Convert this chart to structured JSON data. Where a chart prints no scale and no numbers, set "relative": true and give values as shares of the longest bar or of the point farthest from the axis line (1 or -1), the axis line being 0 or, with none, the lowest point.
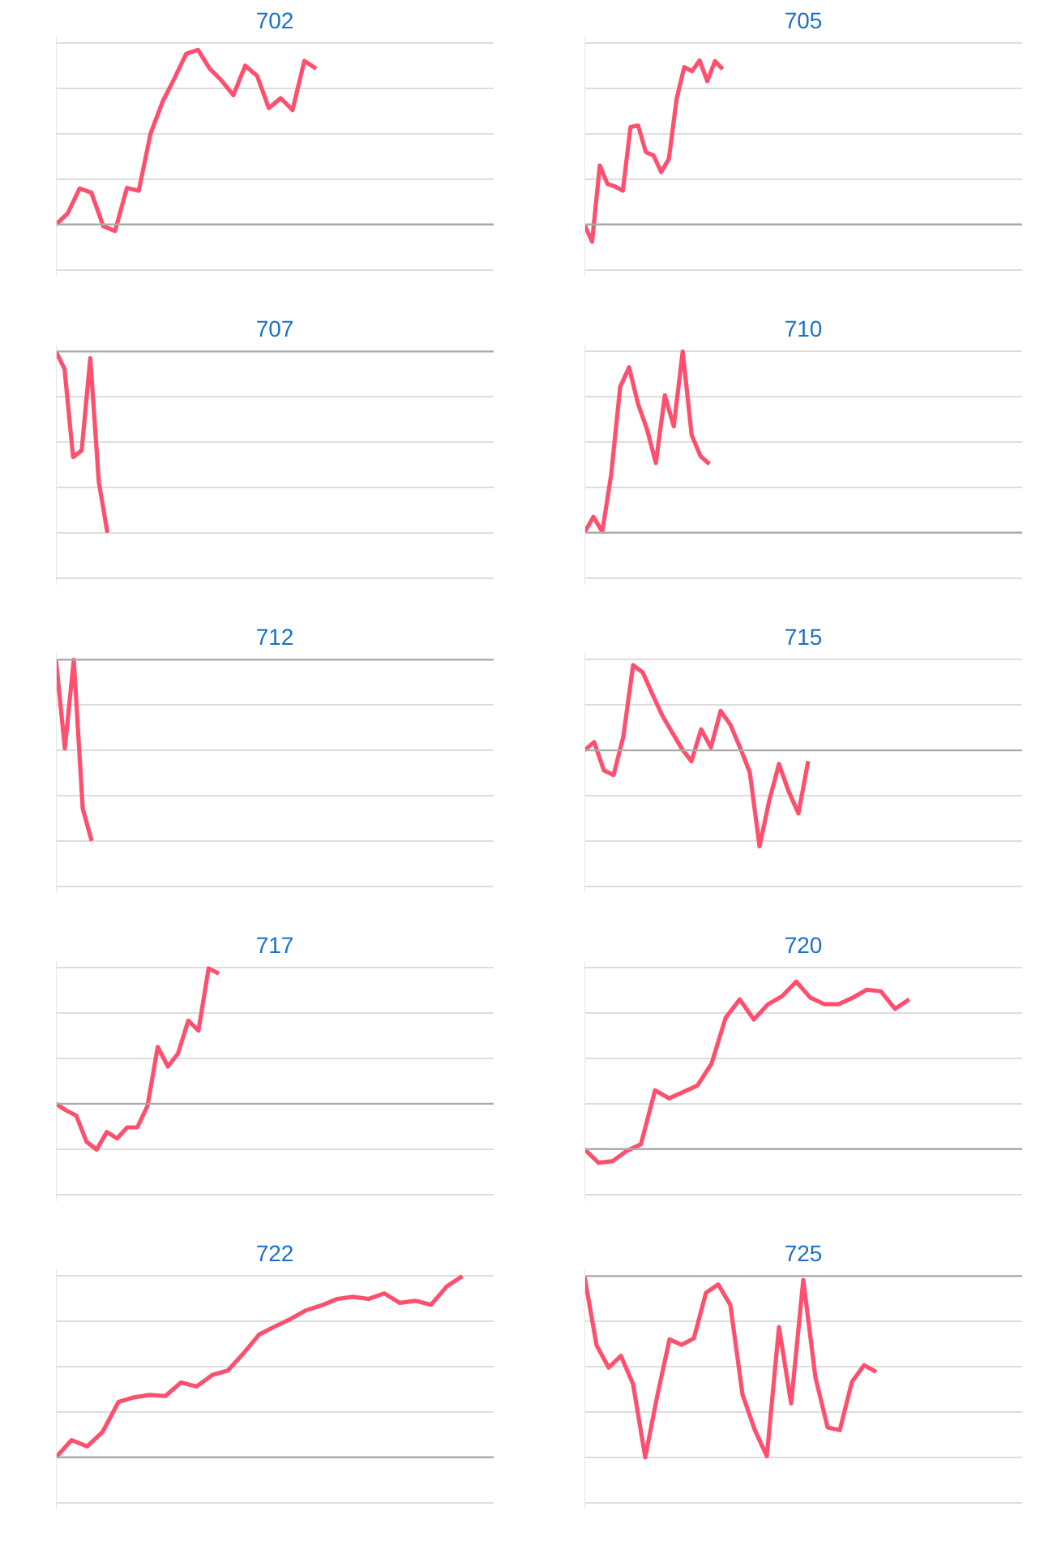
{
  "chart_data": [
    {
      "type": "line",
      "title": "702",
      "relative": true,
      "grid": "y",
      "categories": [
        null,
        null,
        null,
        null,
        null,
        null,
        null,
        null,
        null,
        null,
        null,
        null,
        null,
        null,
        null,
        null,
        null,
        null,
        null,
        null,
        null,
        null,
        null,
        null,
        null,
        null,
        null,
        null,
        null,
        null,
        null,
        null,
        null,
        null,
        null,
        null,
        null,
        null
      ],
      "series": [
        {
          "color": "#ff4f6e",
          "values": [
            0,
            0.064,
            0.206,
            0.182,
            -0.01,
            -0.037,
            0.209,
            0.193,
            0.52,
            0.7,
            0.834,
            0.976,
            1,
            0.892,
            0.824,
            0.74,
            0.909,
            0.851,
            0.666,
            0.723,
            0.655,
            0.936,
            0.892,
            null,
            null,
            null,
            null,
            null,
            null,
            null,
            null,
            null,
            null,
            null,
            null,
            null,
            null,
            null
          ]
        }
      ]
    },
    {
      "type": "line",
      "title": "705",
      "relative": true,
      "grid": "y",
      "categories": [
        null,
        null,
        null,
        null,
        null,
        null,
        null,
        null,
        null,
        null,
        null,
        null,
        null,
        null,
        null,
        null,
        null,
        null,
        null,
        null,
        null,
        null,
        null,
        null,
        null,
        null,
        null,
        null,
        null,
        null,
        null,
        null,
        null,
        null,
        null,
        null,
        null,
        null,
        null,
        null,
        null,
        null,
        null,
        null,
        null,
        null,
        null,
        null,
        null,
        null,
        null,
        null,
        null,
        null,
        null,
        null,
        null,
        null
      ],
      "series": [
        {
          "color": "#ff4f6e",
          "values": [
            0,
            -0.105,
            0.36,
            0.247,
            0.231,
            0.206,
            0.595,
            0.603,
            0.441,
            0.421,
            0.32,
            0.401,
            0.765,
            0.96,
            0.935,
            1,
            0.874,
            0.996,
            0.947,
            null,
            null,
            null,
            null,
            null,
            null,
            null,
            null,
            null,
            null,
            null,
            null,
            null,
            null,
            null,
            null,
            null,
            null,
            null,
            null,
            null,
            null,
            null,
            null,
            null,
            null,
            null,
            null,
            null,
            null,
            null,
            null,
            null,
            null,
            null,
            null,
            null,
            null,
            null
          ]
        }
      ]
    },
    {
      "type": "line",
      "title": "707",
      "relative": true,
      "grid": "y",
      "categories": [
        null,
        null,
        null,
        null,
        null,
        null,
        null,
        null,
        null,
        null,
        null,
        null,
        null,
        null,
        null,
        null,
        null,
        null,
        null,
        null,
        null,
        null,
        null,
        null,
        null,
        null,
        null,
        null,
        null,
        null,
        null,
        null,
        null,
        null,
        null,
        null,
        null,
        null,
        null,
        null,
        null,
        null,
        null,
        null,
        null,
        null,
        null,
        null,
        null,
        null,
        null,
        null
      ],
      "series": [
        {
          "color": "#ff4f6e",
          "values": [
            0,
            -0.096,
            -0.583,
            -0.546,
            -0.037,
            -0.722,
            -1,
            null,
            null,
            null,
            null,
            null,
            null,
            null,
            null,
            null,
            null,
            null,
            null,
            null,
            null,
            null,
            null,
            null,
            null,
            null,
            null,
            null,
            null,
            null,
            null,
            null,
            null,
            null,
            null,
            null,
            null,
            null,
            null,
            null,
            null,
            null,
            null,
            null,
            null,
            null,
            null,
            null,
            null,
            null,
            null,
            null
          ]
        }
      ]
    },
    {
      "type": "line",
      "title": "710",
      "relative": true,
      "grid": "y",
      "categories": [
        null,
        null,
        null,
        null,
        null,
        null,
        null,
        null,
        null,
        null,
        null,
        null,
        null,
        null,
        null,
        null,
        null,
        null,
        null,
        null,
        null,
        null,
        null,
        null,
        null,
        null,
        null,
        null,
        null,
        null,
        null,
        null,
        null,
        null,
        null,
        null,
        null,
        null,
        null,
        null,
        null,
        null,
        null,
        null,
        null,
        null,
        null,
        null,
        null,
        null
      ],
      "series": [
        {
          "color": "#ff4f6e",
          "values": [
            0,
            0.087,
            0.006,
            0.323,
            0.804,
            0.913,
            0.711,
            0.571,
            0.385,
            0.758,
            0.587,
            1,
            0.54,
            0.422,
            0.379,
            null,
            null,
            null,
            null,
            null,
            null,
            null,
            null,
            null,
            null,
            null,
            null,
            null,
            null,
            null,
            null,
            null,
            null,
            null,
            null,
            null,
            null,
            null,
            null,
            null,
            null,
            null,
            null,
            null,
            null,
            null,
            null,
            null,
            null,
            null
          ]
        }
      ]
    },
    {
      "type": "line",
      "title": "712",
      "relative": true,
      "grid": "y",
      "categories": [
        null,
        null,
        null,
        null,
        null,
        null,
        null,
        null,
        null,
        null,
        null,
        null,
        null,
        null,
        null,
        null,
        null,
        null,
        null,
        null,
        null,
        null,
        null,
        null,
        null,
        null,
        null,
        null,
        null,
        null,
        null,
        null,
        null,
        null,
        null,
        null,
        null,
        null,
        null,
        null,
        null,
        null,
        null,
        null,
        null,
        null,
        null,
        null,
        null,
        null
      ],
      "series": [
        {
          "color": "#ff4f6e",
          "values": [
            0,
            -0.489,
            0,
            -0.822,
            -1,
            null,
            null,
            null,
            null,
            null,
            null,
            null,
            null,
            null,
            null,
            null,
            null,
            null,
            null,
            null,
            null,
            null,
            null,
            null,
            null,
            null,
            null,
            null,
            null,
            null,
            null,
            null,
            null,
            null,
            null,
            null,
            null,
            null,
            null,
            null,
            null,
            null,
            null,
            null,
            null,
            null,
            null,
            null,
            null,
            null
          ]
        }
      ]
    },
    {
      "type": "line",
      "title": "715",
      "relative": true,
      "grid": "y",
      "categories": [
        null,
        null,
        null,
        null,
        null,
        null,
        null,
        null,
        null,
        null,
        null,
        null,
        null,
        null,
        null,
        null,
        null,
        null,
        null,
        null,
        null,
        null,
        null,
        null,
        null,
        null,
        null,
        null,
        null,
        null,
        null,
        null,
        null,
        null,
        null,
        null,
        null,
        null,
        null,
        null,
        null,
        null,
        null,
        null,
        null,
        null
      ],
      "series": [
        {
          "color": "#ff4f6e",
          "values": [
            0,
            0.086,
            -0.21,
            -0.257,
            0.143,
            0.886,
            0.81,
            0.581,
            0.362,
            0.19,
            0.019,
            -0.114,
            0.219,
            0.029,
            0.41,
            0.267,
            0.029,
            -0.229,
            -1,
            -0.524,
            -0.143,
            -0.429,
            -0.657,
            -0.114,
            null,
            null,
            null,
            null,
            null,
            null,
            null,
            null,
            null,
            null,
            null,
            null,
            null,
            null,
            null,
            null,
            null,
            null,
            null,
            null,
            null,
            null
          ]
        }
      ]
    },
    {
      "type": "line",
      "title": "717",
      "relative": true,
      "grid": "y",
      "categories": [
        null,
        null,
        null,
        null,
        null,
        null,
        null,
        null,
        null,
        null,
        null,
        null,
        null,
        null,
        null,
        null,
        null,
        null,
        null,
        null,
        null,
        null,
        null,
        null,
        null,
        null,
        null,
        null,
        null,
        null,
        null,
        null,
        null,
        null,
        null,
        null,
        null,
        null,
        null,
        null,
        null,
        null,
        null,
        null
      ],
      "series": [
        {
          "color": "#ff4f6e",
          "values": [
            0,
            -0.048,
            -0.087,
            -0.28,
            -0.338,
            -0.208,
            -0.256,
            -0.174,
            -0.174,
            -0.014,
            0.42,
            0.275,
            0.372,
            0.614,
            0.541,
            1,
            0.961,
            null,
            null,
            null,
            null,
            null,
            null,
            null,
            null,
            null,
            null,
            null,
            null,
            null,
            null,
            null,
            null,
            null,
            null,
            null,
            null,
            null,
            null,
            null,
            null,
            null,
            null,
            null
          ]
        }
      ]
    },
    {
      "type": "line",
      "title": "720",
      "relative": true,
      "grid": "y",
      "categories": [
        null,
        null,
        null,
        null,
        null,
        null,
        null,
        null,
        null,
        null,
        null,
        null,
        null,
        null,
        null,
        null,
        null,
        null,
        null,
        null,
        null,
        null,
        null,
        null,
        null,
        null,
        null,
        null,
        null,
        null,
        null,
        null
      ],
      "series": [
        {
          "color": "#ff4f6e",
          "values": [
            0,
            -0.082,
            -0.072,
            -0.01,
            0.029,
            0.351,
            0.303,
            0.341,
            0.38,
            0.51,
            0.784,
            0.894,
            0.774,
            0.865,
            0.913,
            1,
            0.904,
            0.865,
            0.865,
            0.904,
            0.952,
            0.942,
            0.837,
            0.894,
            null,
            null,
            null,
            null,
            null,
            null,
            null,
            null
          ]
        }
      ]
    },
    {
      "type": "line",
      "title": "722",
      "relative": true,
      "grid": "y",
      "categories": [
        null,
        null,
        null,
        null,
        null,
        null,
        null,
        null,
        null,
        null,
        null,
        null,
        null,
        null,
        null,
        null,
        null,
        null,
        null,
        null,
        null,
        null,
        null,
        null,
        null,
        null,
        null,
        null,
        null
      ],
      "series": [
        {
          "color": "#ff4f6e",
          "values": [
            0,
            0.095,
            0.06,
            0.142,
            0.306,
            0.331,
            0.344,
            0.338,
            0.413,
            0.391,
            0.454,
            0.479,
            0.574,
            0.678,
            0.722,
            0.763,
            0.811,
            0.839,
            0.874,
            0.886,
            0.874,
            0.905,
            0.852,
            0.864,
            0.842,
            0.943,
            1,
            null,
            null
          ]
        }
      ]
    },
    {
      "type": "line",
      "title": "725",
      "relative": true,
      "grid": "y",
      "categories": [
        null,
        null,
        null,
        null,
        null,
        null,
        null,
        null,
        null,
        null,
        null,
        null,
        null,
        null,
        null,
        null,
        null,
        null,
        null,
        null,
        null,
        null,
        null,
        null,
        null,
        null,
        null,
        null,
        null,
        null,
        null,
        null,
        null,
        null,
        null,
        null,
        null
      ],
      "series": [
        {
          "color": "#ff4f6e",
          "values": [
            0,
            -0.382,
            -0.505,
            -0.44,
            -0.596,
            -1,
            -0.657,
            -0.349,
            -0.379,
            -0.343,
            -0.092,
            -0.046,
            -0.159,
            -0.654,
            -0.847,
            -0.994,
            -0.281,
            -0.703,
            -0.021,
            -0.56,
            -0.835,
            -0.85,
            -0.584,
            -0.492,
            -0.529,
            null,
            null,
            null,
            null,
            null,
            null,
            null,
            null,
            null,
            null,
            null,
            null
          ]
        }
      ]
    }
  ]
}
